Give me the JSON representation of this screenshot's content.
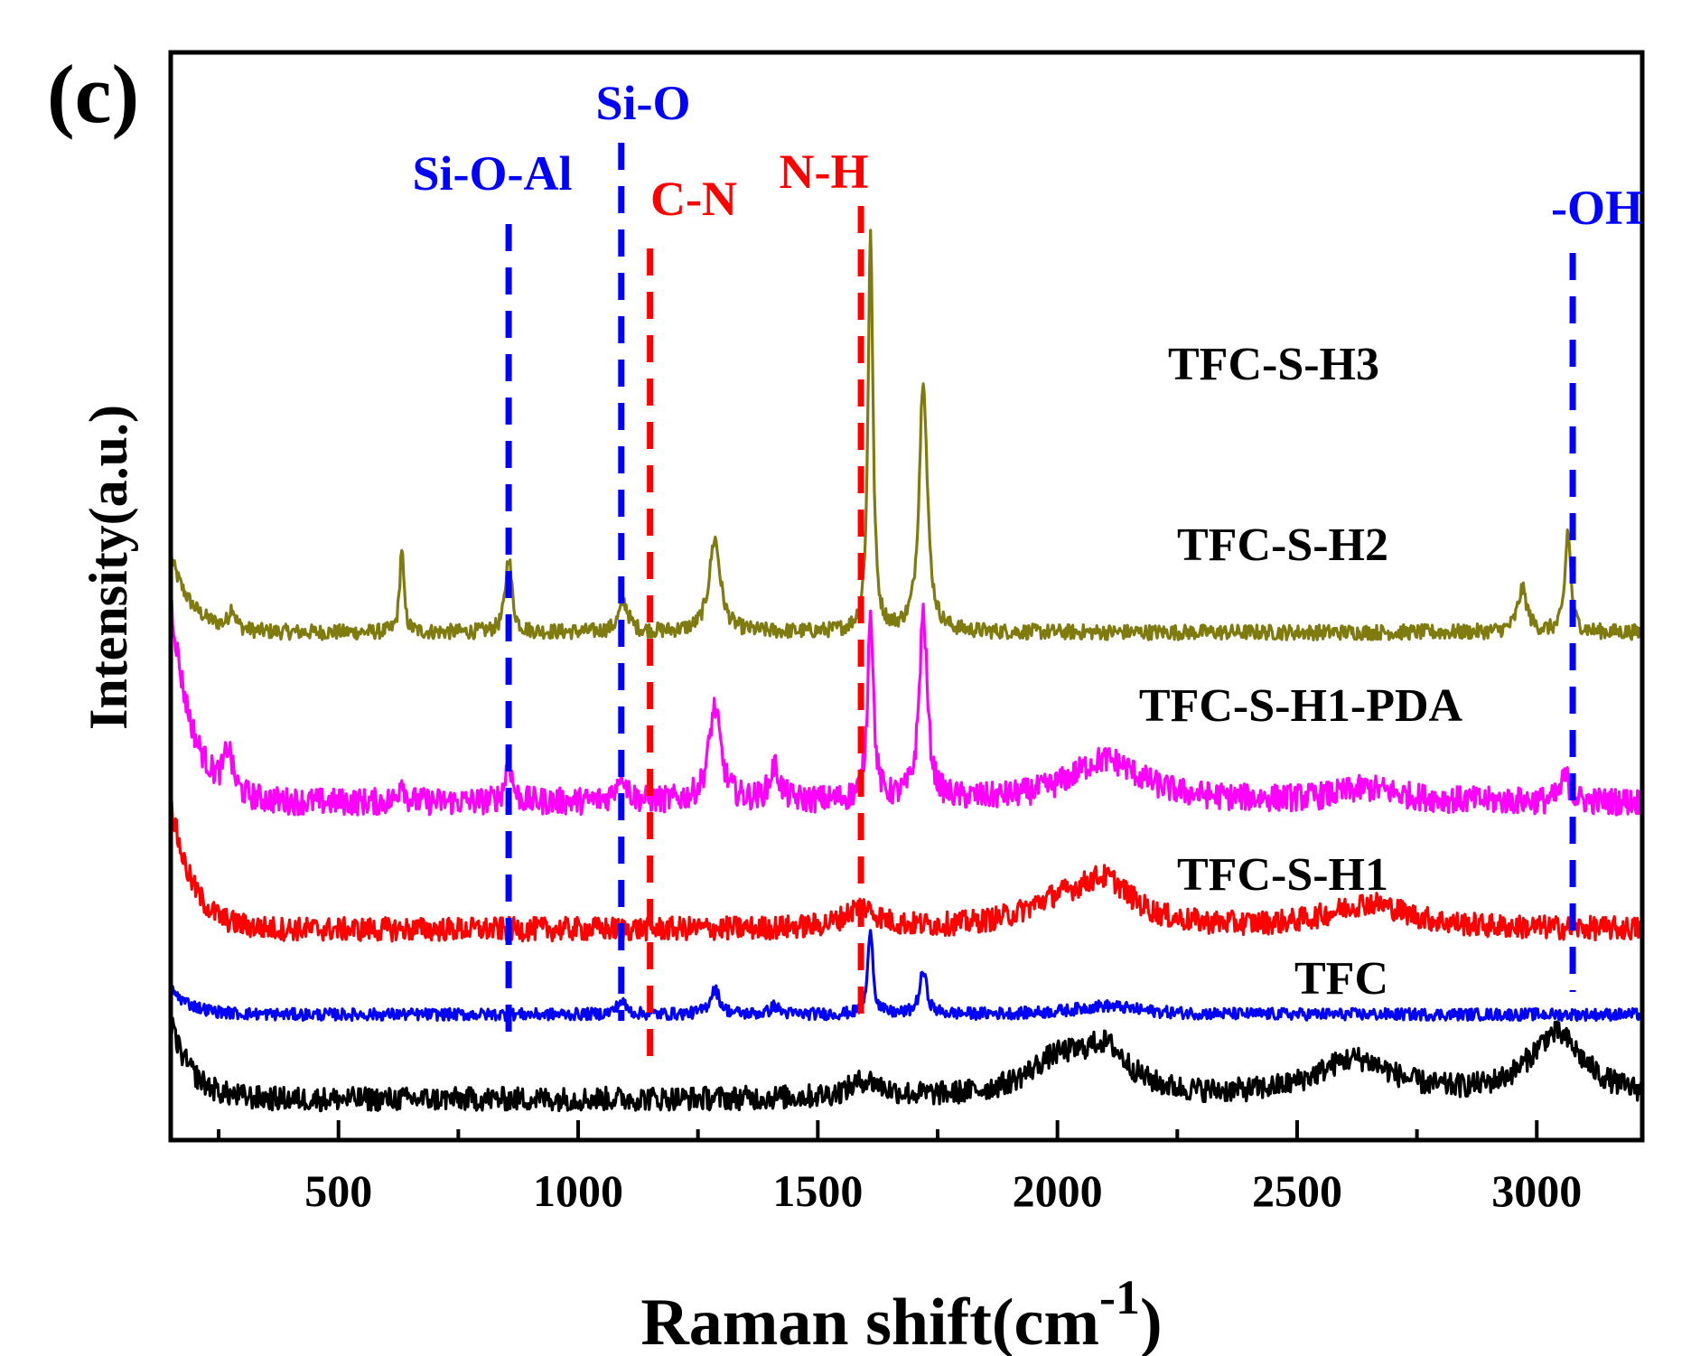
{
  "chart_data": {
    "type": "line",
    "panel_label": "(c)",
    "xlabel": "Raman shift(cm",
    "xlabel_superscript": "-1",
    "xlabel_close": ")",
    "ylabel": "Intensity(a.u.)",
    "xlim": [
      150,
      3220
    ],
    "x_ticks": [
      500,
      1000,
      1500,
      2000,
      2500,
      3000
    ],
    "x_tick_labels": [
      "500",
      "1000",
      "1500",
      "2000",
      "2500",
      "3000"
    ],
    "y_ticks_shown": false,
    "series": [
      {
        "name": "TFC-S-H3",
        "color": "#7f7b0f",
        "label": "TFC-S-H3",
        "baseline": 1.0,
        "noise": 0.018,
        "start_rise": 0.18,
        "peaks": [
          [
            278,
            0.05,
            8
          ],
          [
            632,
            0.2,
            5
          ],
          [
            855,
            0.18,
            8
          ],
          [
            1095,
            0.07,
            12
          ],
          [
            1285,
            0.22,
            14
          ],
          [
            1610,
            0.95,
            6
          ],
          [
            1720,
            0.6,
            10
          ],
          [
            2970,
            0.1,
            12
          ],
          [
            3065,
            0.24,
            7
          ]
        ]
      },
      {
        "name": "TFC-S-H2",
        "color": "#ff00ff",
        "label": "TFC-S-H2",
        "baseline": 0.6,
        "noise": 0.032,
        "start_rise": 0.48,
        "peaks": [
          [
            270,
            0.1,
            10
          ],
          [
            632,
            0.06,
            6
          ],
          [
            855,
            0.1,
            8
          ],
          [
            1090,
            0.07,
            12
          ],
          [
            1285,
            0.22,
            15
          ],
          [
            1410,
            0.08,
            12
          ],
          [
            1610,
            0.46,
            7
          ],
          [
            1720,
            0.44,
            10
          ],
          [
            2100,
            0.1,
            90
          ],
          [
            2650,
            0.03,
            80
          ],
          [
            3060,
            0.06,
            10
          ]
        ]
      },
      {
        "name": "TFC-S-H1-PDA",
        "color": "#ff0000",
        "label": "TFC-S-H1-PDA",
        "baseline": 0.3,
        "noise": 0.028,
        "start_rise": 0.3,
        "peaks": [
          [
            1590,
            0.05,
            40
          ],
          [
            2000,
            0.05,
            90
          ],
          [
            2100,
            0.1,
            70
          ],
          [
            2650,
            0.06,
            100
          ]
        ]
      },
      {
        "name": "TFC-S-H1",
        "color": "#0000ff",
        "label": "TFC-S-H1",
        "baseline": 0.1,
        "noise": 0.014,
        "start_rise": 0.06,
        "peaks": [
          [
            1090,
            0.03,
            12
          ],
          [
            1285,
            0.06,
            12
          ],
          [
            1410,
            0.02,
            10
          ],
          [
            1610,
            0.21,
            6
          ],
          [
            1720,
            0.1,
            9
          ],
          [
            2100,
            0.02,
            80
          ]
        ]
      },
      {
        "name": "TFC",
        "color": "#000000",
        "label": "TFC",
        "baseline": -0.1,
        "noise": 0.028,
        "start_rise": 0.18,
        "peaks": [
          [
            1600,
            0.04,
            40
          ],
          [
            2000,
            0.08,
            80
          ],
          [
            2100,
            0.1,
            60
          ],
          [
            2620,
            0.09,
            100
          ],
          [
            3040,
            0.15,
            70
          ]
        ]
      }
    ],
    "annotations": [
      {
        "label": "Si-O-Al",
        "x": 855,
        "color": "#0000ff"
      },
      {
        "label": "Si-O",
        "x": 1090,
        "color": "#0000ff"
      },
      {
        "label": "C-N",
        "x": 1150,
        "color": "#ff0000"
      },
      {
        "label": "N-H",
        "x": 1590,
        "color": "#ff0000"
      },
      {
        "label": "-OH",
        "x": 3075,
        "color": "#0000ff"
      }
    ]
  }
}
